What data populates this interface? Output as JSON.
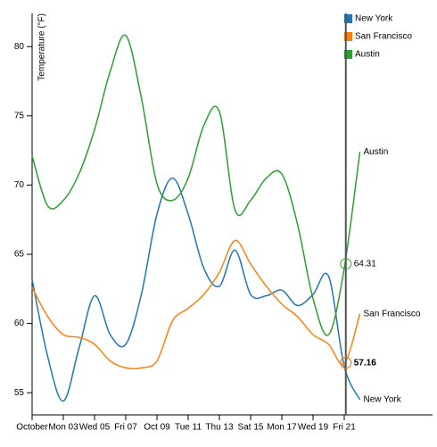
{
  "chart_data": {
    "type": "line",
    "y_label": "Temperature (°F)",
    "x": [
      1,
      2,
      3,
      4,
      5,
      6,
      7,
      8,
      9,
      10,
      11,
      12,
      13,
      14,
      15,
      16,
      17,
      18,
      19,
      20,
      21,
      22
    ],
    "xlim": [
      1,
      22
    ],
    "xticks": [
      {
        "value": 1,
        "label": "October"
      },
      {
        "value": 3,
        "label": "Mon 03"
      },
      {
        "value": 5,
        "label": "Wed 05"
      },
      {
        "value": 7,
        "label": "Fri 07"
      },
      {
        "value": 9,
        "label": "Oct 09"
      },
      {
        "value": 11,
        "label": "Tue 11"
      },
      {
        "value": 13,
        "label": "Thu 13"
      },
      {
        "value": 15,
        "label": "Sat 15"
      },
      {
        "value": 17,
        "label": "Mon 17"
      },
      {
        "value": 19,
        "label": "Wed 19"
      },
      {
        "value": 21,
        "label": "Fri 21"
      }
    ],
    "ylim": [
      53.4,
      82.4
    ],
    "yticks": [
      55,
      60,
      65,
      70,
      75,
      80
    ],
    "series": [
      {
        "name": "New York",
        "color": "#1f77b4",
        "values": [
          63.2,
          57.6,
          54.4,
          58.2,
          62.0,
          59.2,
          58.5,
          62.1,
          67.9,
          70.5,
          67.9,
          64.0,
          62.7,
          65.3,
          62.1,
          62.0,
          62.4,
          61.3,
          62.1,
          63.4,
          56.9,
          54.5
        ]
      },
      {
        "name": "San Francisco",
        "color": "#ff7f0e",
        "values": [
          62.6,
          60.5,
          59.2,
          59.0,
          58.5,
          57.3,
          56.8,
          56.8,
          57.3,
          60.2,
          61.1,
          62.1,
          63.7,
          66.0,
          64.3,
          62.7,
          61.4,
          60.5,
          59.2,
          58.5,
          57.1,
          60.7
        ]
      },
      {
        "name": "Austin",
        "color": "#2ca02c",
        "values": [
          72.1,
          68.5,
          68.9,
          70.8,
          74.0,
          78.2,
          80.8,
          76.3,
          70.1,
          68.9,
          70.5,
          74.3,
          75.3,
          68.2,
          68.9,
          70.5,
          70.8,
          67.2,
          61.8,
          59.2,
          64.0,
          72.4
        ]
      }
    ],
    "hover": {
      "x": 21.1,
      "values": [
        57.16,
        57.16,
        64.31
      ]
    }
  }
}
